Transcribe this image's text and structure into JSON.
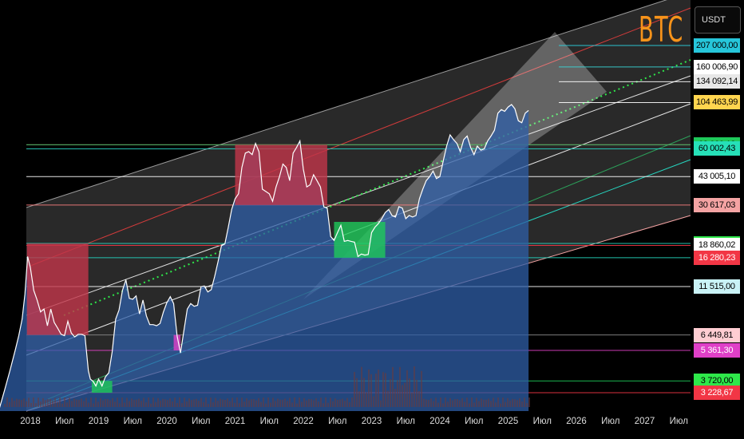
{
  "ticker": "BTC",
  "currency_button": "USDT",
  "colors": {
    "background": "#000000",
    "price_fill": "#2f5fa8",
    "price_line": "#ffffff",
    "brand": "#f7931a"
  },
  "chart_data": {
    "type": "line",
    "scale": "log",
    "ylim": [
      2100,
      215000
    ],
    "title": "BTC",
    "x_tick_labels": [
      "2018",
      "Июл",
      "2019",
      "Июл",
      "2020",
      "Июл",
      "2021",
      "Июл",
      "2022",
      "Июл",
      "2023",
      "Июл",
      "2024",
      "Июл",
      "2025",
      "Июл",
      "2026",
      "Июл",
      "2027",
      "Июл"
    ],
    "x_tick_times": [
      2018.0,
      2018.5,
      2019.0,
      2019.5,
      2020.0,
      2020.5,
      2021.0,
      2021.5,
      2022.0,
      2022.5,
      2023.0,
      2023.5,
      2024.0,
      2024.5,
      2025.0,
      2025.5,
      2026.0,
      2026.5,
      2027.0,
      2027.5
    ],
    "price_series": {
      "name": "BTC/USDT",
      "x": [
        2017.55,
        2017.62,
        2017.7,
        2017.78,
        2017.83,
        2017.88,
        2017.92,
        2017.96,
        2018.0,
        2018.05,
        2018.1,
        2018.15,
        2018.2,
        2018.25,
        2018.3,
        2018.35,
        2018.4,
        2018.45,
        2018.5,
        2018.55,
        2018.6,
        2018.65,
        2018.7,
        2018.75,
        2018.8,
        2018.85,
        2018.88,
        2018.92,
        2018.96,
        2019.0,
        2019.05,
        2019.1,
        2019.15,
        2019.2,
        2019.25,
        2019.3,
        2019.35,
        2019.4,
        2019.45,
        2019.5,
        2019.55,
        2019.6,
        2019.65,
        2019.7,
        2019.75,
        2019.8,
        2019.85,
        2019.9,
        2019.95,
        2020.0,
        2020.05,
        2020.1,
        2020.15,
        2020.2,
        2020.25,
        2020.3,
        2020.35,
        2020.4,
        2020.45,
        2020.5,
        2020.55,
        2020.6,
        2020.65,
        2020.7,
        2020.75,
        2020.8,
        2020.85,
        2020.9,
        2020.95,
        2021.0,
        2021.05,
        2021.1,
        2021.15,
        2021.2,
        2021.25,
        2021.3,
        2021.35,
        2021.4,
        2021.45,
        2021.5,
        2021.55,
        2021.6,
        2021.65,
        2021.7,
        2021.75,
        2021.8,
        2021.85,
        2021.9,
        2021.95,
        2022.0,
        2022.05,
        2022.1,
        2022.15,
        2022.2,
        2022.25,
        2022.3,
        2022.35,
        2022.4,
        2022.45,
        2022.5,
        2022.55,
        2022.6,
        2022.65,
        2022.7,
        2022.75,
        2022.8,
        2022.85,
        2022.9,
        2022.95,
        2023.0,
        2023.05,
        2023.1,
        2023.15,
        2023.2,
        2023.25,
        2023.3,
        2023.35,
        2023.4,
        2023.45,
        2023.5,
        2023.55,
        2023.6,
        2023.65,
        2023.7,
        2023.75,
        2023.8,
        2023.85,
        2023.9,
        2023.95,
        2024.0,
        2024.05,
        2024.1,
        2024.15,
        2024.2,
        2024.25,
        2024.3,
        2024.35,
        2024.4,
        2024.45,
        2024.5,
        2024.55,
        2024.6,
        2024.65,
        2024.7,
        2024.75,
        2024.8,
        2024.85,
        2024.9,
        2024.95,
        2025.0,
        2025.05,
        2025.1,
        2025.15,
        2025.2,
        2025.25,
        2025.3
      ],
      "y": [
        2700,
        3300,
        4200,
        5400,
        6400,
        7800,
        10500,
        16500,
        14500,
        11000,
        9800,
        8500,
        8800,
        7200,
        8800,
        7500,
        7000,
        6500,
        6400,
        7600,
        6600,
        6300,
        6500,
        6500,
        6400,
        4200,
        3800,
        3700,
        3500,
        3800,
        3500,
        3900,
        4100,
        5300,
        7800,
        8700,
        11000,
        12500,
        10000,
        9900,
        10300,
        8300,
        9800,
        8100,
        7300,
        7300,
        7200,
        7400,
        8500,
        9500,
        10200,
        9400,
        6400,
        5200,
        6800,
        8800,
        9400,
        9100,
        9200,
        11500,
        11600,
        10800,
        11100,
        13000,
        15500,
        18800,
        19200,
        23500,
        29000,
        33000,
        35000,
        48000,
        57000,
        58000,
        56000,
        64000,
        58000,
        37000,
        36000,
        35000,
        32000,
        38000,
        43000,
        50000,
        48000,
        41000,
        57000,
        61000,
        66000,
        47000,
        38000,
        39000,
        44000,
        41000,
        38000,
        30000,
        29500,
        21000,
        20000,
        22000,
        24000,
        19800,
        20000,
        19800,
        19600,
        16500,
        17000,
        16800,
        16900,
        22000,
        23500,
        24500,
        26000,
        28000,
        29000,
        27000,
        26500,
        30000,
        29500,
        26000,
        27000,
        26500,
        27000,
        33000,
        37000,
        41000,
        43000,
        46000,
        42000,
        43000,
        52000,
        62000,
        71000,
        67000,
        64000,
        58000,
        67000,
        70000,
        61000,
        56000,
        62000,
        59000,
        60000,
        66000,
        70000,
        75000,
        92000,
        96000,
        94000,
        99000,
        102000,
        97000,
        84000,
        82000,
        92000,
        95000
      ]
    },
    "price_levels": [
      {
        "label": "207 000,00",
        "value": 207000.0,
        "bg": "#26c6da",
        "fg": "#000000",
        "line": "#2bd1e0"
      },
      {
        "label": "160 006,90",
        "value": 160006.9,
        "bg": "#ffffff",
        "fg": "#000000",
        "line": "#38d6d6"
      },
      {
        "label": "134 092,14",
        "value": 134092.14,
        "bg": "#e8e8e8",
        "fg": "#000000",
        "line": "#ffffff"
      },
      {
        "label": "104 463,99",
        "value": 104463.99,
        "bg": "#ffd54f",
        "fg": "#000000",
        "line": "#ffffff"
      },
      {
        "label": "63 000,18",
        "value": 63000.18,
        "bg": "#f23645",
        "fg": "#ffffff",
        "line": "#ffe08a"
      },
      {
        "label": "63 000,13",
        "value": 63000.13,
        "bg": "#1ec95a",
        "fg": "#000000",
        "line": "#2ca05a"
      },
      {
        "label": "60 002,43",
        "value": 60002.43,
        "bg": "#26e0b8",
        "fg": "#000000",
        "line": "#27d1c0"
      },
      {
        "label": "43 005,10",
        "value": 43005.1,
        "bg": "#ffffff",
        "fg": "#000000",
        "line": "#ffffff"
      },
      {
        "label": "30 617,03",
        "value": 30617.03,
        "bg": "#f4a3a3",
        "fg": "#000000",
        "line": "#f77c7c"
      },
      {
        "label": "19 300,00",
        "value": 19300.0,
        "bg": "#2ee84a",
        "fg": "#000000",
        "line": "#26d6c0"
      },
      {
        "label": "18 860,02",
        "value": 18860.02,
        "bg": "#ffffff",
        "fg": "#000000",
        "line": "#f23645"
      },
      {
        "label": "16 280,23",
        "value": 16280.23,
        "bg": "#f23645",
        "fg": "#ffffff",
        "line": "#26d6c0"
      },
      {
        "label": "11 515,00",
        "value": 11515.0,
        "bg": "#c9f2f6",
        "fg": "#000000",
        "line": "#ffffff"
      },
      {
        "label": "6 449,81",
        "value": 6449.81,
        "bg": "#ffcdd2",
        "fg": "#000000",
        "line": "#888888"
      },
      {
        "label": "5 361,30",
        "value": 5361.3,
        "bg": "#e040c8",
        "fg": "#ffffff",
        "line": "#e040c8"
      },
      {
        "label": "3 720,00",
        "value": 3720.0,
        "bg": "#2ee84a",
        "fg": "#000000",
        "line": "#1ec95a"
      },
      {
        "label": "3 228,67",
        "value": 3228.67,
        "bg": "#f23645",
        "fg": "#ffffff",
        "line": "#f23645"
      }
    ]
  }
}
